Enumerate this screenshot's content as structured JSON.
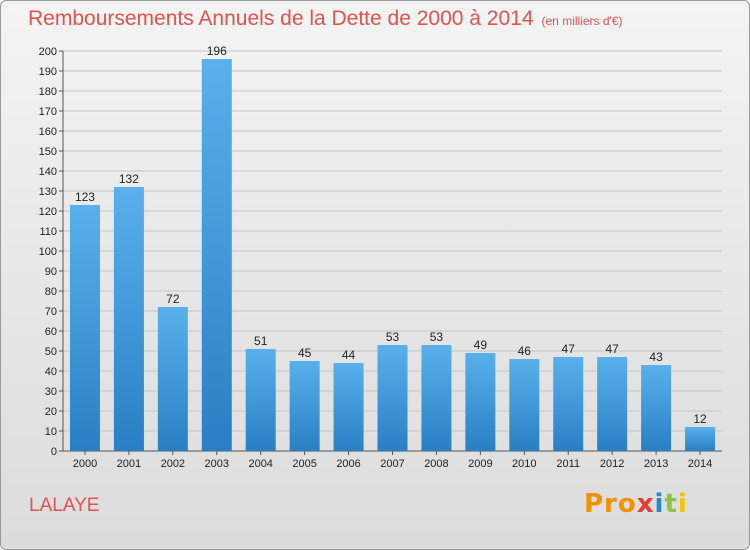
{
  "header": {
    "title": "Remboursements Annuels de la Dette de 2000 à 2014",
    "unit": "(en milliers d'€)"
  },
  "footer": {
    "commune": "LALAYE",
    "logo": {
      "p1": "Pro",
      "p2": "x",
      "p3": "i",
      "p4": "t",
      "p5": "i",
      "text": "Proxiti"
    }
  },
  "colors": {
    "title": "#e0534e",
    "bar_top": "#5ab0ec",
    "bar_bottom": "#2a7fc4"
  },
  "chart_data": {
    "type": "bar",
    "title": "Remboursements Annuels de la Dette de 2000 à 2014",
    "subtitle": "(en milliers d'€)",
    "categories": [
      "2000",
      "2001",
      "2002",
      "2003",
      "2004",
      "2005",
      "2006",
      "2007",
      "2008",
      "2009",
      "2010",
      "2011",
      "2012",
      "2013",
      "2014"
    ],
    "values": [
      123,
      132,
      72,
      196,
      51,
      45,
      44,
      53,
      53,
      49,
      46,
      47,
      47,
      43,
      12
    ],
    "ylim": [
      0,
      200
    ],
    "yticks": [
      0,
      10,
      20,
      30,
      40,
      50,
      60,
      70,
      80,
      90,
      100,
      110,
      120,
      130,
      140,
      150,
      160,
      170,
      180,
      190,
      200
    ],
    "grid": true,
    "data_labels": true
  }
}
